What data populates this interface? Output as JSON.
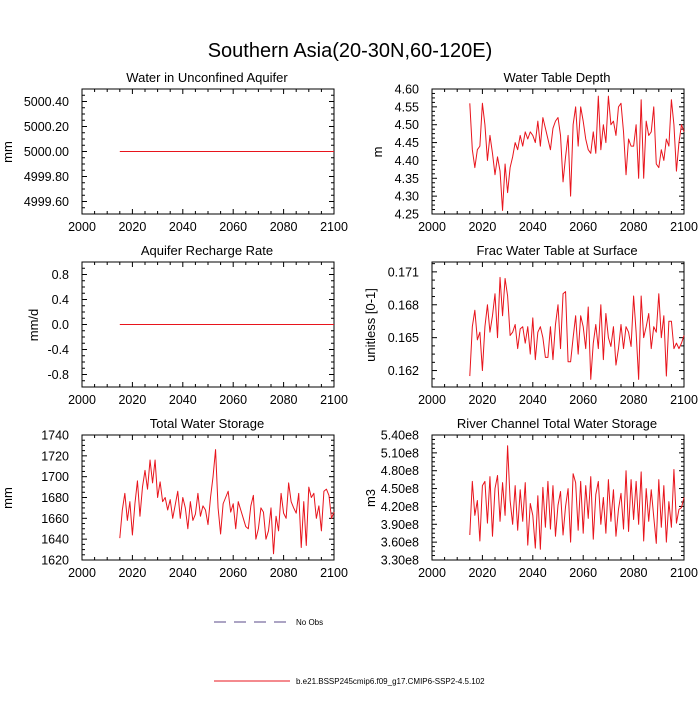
{
  "figure": {
    "title": "Southern Asia(20-30N,60-120E)"
  },
  "legend": {
    "entries": [
      {
        "label": "No Obs",
        "style": "dashed",
        "color": "#5a4a8a"
      },
      {
        "label": "b.e21.BSSP245cmip6.f09_g17.CMIP6-SSP2-4.5.102",
        "style": "solid",
        "color": "#e8141c"
      }
    ]
  },
  "chart_data": [
    {
      "type": "line",
      "title": "Water in Unconfined Aquifer",
      "xlabel": "",
      "ylabel": "mm",
      "xlim": [
        2000,
        2100
      ],
      "ylim": [
        4999.5,
        5000.5
      ],
      "xticks": [
        2000,
        2020,
        2040,
        2060,
        2080,
        2100
      ],
      "yticks": [
        4999.6,
        4999.8,
        5000.0,
        5000.2,
        5000.4
      ],
      "yticklabels": [
        "4999.60",
        "4999.80",
        "5000.00",
        "5000.20",
        "5000.40"
      ],
      "series": [
        {
          "color": "#e8141c",
          "x": [
            2015,
            2100
          ],
          "y": [
            5000.0,
            5000.0
          ]
        }
      ]
    },
    {
      "type": "line",
      "title": "Water Table Depth",
      "xlabel": "",
      "ylabel": "m",
      "xlim": [
        2000,
        2100
      ],
      "ylim": [
        4.25,
        4.6
      ],
      "xticks": [
        2000,
        2020,
        2040,
        2060,
        2080,
        2100
      ],
      "yticks": [
        4.25,
        4.3,
        4.35,
        4.4,
        4.45,
        4.5,
        4.55,
        4.6
      ],
      "yticklabels": [
        "4.25",
        "4.30",
        "4.35",
        "4.40",
        "4.45",
        "4.50",
        "4.55",
        "4.60"
      ],
      "series": [
        {
          "color": "#e8141c",
          "x": [
            2015,
            2016,
            2017,
            2018,
            2019,
            2020,
            2021,
            2022,
            2023,
            2024,
            2025,
            2026,
            2027,
            2028,
            2029,
            2030,
            2031,
            2032,
            2033,
            2034,
            2035,
            2036,
            2037,
            2038,
            2039,
            2040,
            2041,
            2042,
            2043,
            2044,
            2045,
            2046,
            2047,
            2048,
            2049,
            2050,
            2051,
            2052,
            2053,
            2054,
            2055,
            2056,
            2057,
            2058,
            2059,
            2060,
            2061,
            2062,
            2063,
            2064,
            2065,
            2066,
            2067,
            2068,
            2069,
            2070,
            2071,
            2072,
            2073,
            2074,
            2075,
            2076,
            2077,
            2078,
            2079,
            2080,
            2081,
            2082,
            2083,
            2084,
            2085,
            2086,
            2087,
            2088,
            2089,
            2090,
            2091,
            2092,
            2093,
            2094,
            2095,
            2096,
            2097,
            2098,
            2099,
            2100
          ],
          "y": [
            4.56,
            4.43,
            4.38,
            4.43,
            4.44,
            4.56,
            4.5,
            4.4,
            4.47,
            4.42,
            4.36,
            4.41,
            4.37,
            4.26,
            4.39,
            4.31,
            4.38,
            4.41,
            4.45,
            4.43,
            4.47,
            4.44,
            4.48,
            4.46,
            4.48,
            4.47,
            4.45,
            4.51,
            4.44,
            4.52,
            4.49,
            4.46,
            4.43,
            4.49,
            4.51,
            4.52,
            4.47,
            4.34,
            4.41,
            4.47,
            4.3,
            4.5,
            4.55,
            4.44,
            4.55,
            4.51,
            4.46,
            4.43,
            4.42,
            4.48,
            4.42,
            4.58,
            4.43,
            4.5,
            4.45,
            4.58,
            4.5,
            4.51,
            4.47,
            4.55,
            4.56,
            4.48,
            4.36,
            4.46,
            4.44,
            4.44,
            4.5,
            4.35,
            4.57,
            4.35,
            4.51,
            4.47,
            4.48,
            4.55,
            4.39,
            4.38,
            4.43,
            4.4,
            4.46,
            4.44,
            4.57,
            4.5,
            4.37,
            4.45,
            4.5,
            4.48
          ]
        }
      ]
    },
    {
      "type": "line",
      "title": "Aquifer Recharge Rate",
      "xlabel": "",
      "ylabel": "mm/d",
      "xlim": [
        2000,
        2100
      ],
      "ylim": [
        -1.0,
        1.0
      ],
      "xticks": [
        2000,
        2020,
        2040,
        2060,
        2080,
        2100
      ],
      "yticks": [
        -0.8,
        -0.4,
        0.0,
        0.4,
        0.8
      ],
      "yticklabels": [
        "-0.8",
        "-0.4",
        "0.0",
        "0.4",
        "0.8"
      ],
      "series": [
        {
          "color": "#e8141c",
          "x": [
            2015,
            2100
          ],
          "y": [
            0.0,
            0.0
          ]
        }
      ]
    },
    {
      "type": "line",
      "title": "Frac Water Table at Surface",
      "xlabel": "",
      "ylabel": "unitless [0-1]",
      "xlim": [
        2000,
        2100
      ],
      "ylim": [
        0.1605,
        0.1719
      ],
      "xticks": [
        2000,
        2020,
        2040,
        2060,
        2080,
        2100
      ],
      "yticks": [
        0.162,
        0.165,
        0.168,
        0.171
      ],
      "yticklabels": [
        "0.162",
        "0.165",
        "0.168",
        "0.171"
      ],
      "series": [
        {
          "color": "#e8141c",
          "x": [
            2015,
            2016,
            2017,
            2018,
            2019,
            2020,
            2021,
            2022,
            2023,
            2024,
            2025,
            2026,
            2027,
            2028,
            2029,
            2030,
            2031,
            2032,
            2033,
            2034,
            2035,
            2036,
            2037,
            2038,
            2039,
            2040,
            2041,
            2042,
            2043,
            2044,
            2045,
            2046,
            2047,
            2048,
            2049,
            2050,
            2051,
            2052,
            2053,
            2054,
            2055,
            2056,
            2057,
            2058,
            2059,
            2060,
            2061,
            2062,
            2063,
            2064,
            2065,
            2066,
            2067,
            2068,
            2069,
            2070,
            2071,
            2072,
            2073,
            2074,
            2075,
            2076,
            2077,
            2078,
            2079,
            2080,
            2081,
            2082,
            2083,
            2084,
            2085,
            2086,
            2087,
            2088,
            2089,
            2090,
            2091,
            2092,
            2093,
            2094,
            2095,
            2096,
            2097,
            2098,
            2099,
            2100
          ],
          "y": [
            0.1615,
            0.166,
            0.1675,
            0.1648,
            0.1655,
            0.162,
            0.166,
            0.168,
            0.1655,
            0.167,
            0.169,
            0.165,
            0.1705,
            0.167,
            0.1704,
            0.1688,
            0.1652,
            0.1655,
            0.1662,
            0.164,
            0.1658,
            0.166,
            0.1645,
            0.166,
            0.1635,
            0.1668,
            0.163,
            0.1655,
            0.166,
            0.165,
            0.1632,
            0.1632,
            0.166,
            0.163,
            0.1662,
            0.168,
            0.164,
            0.169,
            0.1692,
            0.1628,
            0.1628,
            0.165,
            0.167,
            0.1635,
            0.167,
            0.166,
            0.164,
            0.1678,
            0.1612,
            0.1645,
            0.1662,
            0.164,
            0.168,
            0.163,
            0.1672,
            0.165,
            0.1642,
            0.166,
            0.1625,
            0.164,
            0.1662,
            0.164,
            0.166,
            0.1655,
            0.1642,
            0.1688,
            0.1655,
            0.1612,
            0.1688,
            0.165,
            0.166,
            0.1672,
            0.164,
            0.166,
            0.1655,
            0.169,
            0.165,
            0.167,
            0.1615,
            0.1665,
            0.1665,
            0.164,
            0.1645,
            0.164,
            0.1645,
            0.1652
          ]
        }
      ]
    },
    {
      "type": "line",
      "title": "Total Water Storage",
      "xlabel": "",
      "ylabel": "mm",
      "xlim": [
        2000,
        2100
      ],
      "ylim": [
        1620,
        1740
      ],
      "xticks": [
        2000,
        2020,
        2040,
        2060,
        2080,
        2100
      ],
      "yticks": [
        1620,
        1640,
        1660,
        1680,
        1700,
        1720,
        1740
      ],
      "yticklabels": [
        "1620",
        "1640",
        "1660",
        "1680",
        "1700",
        "1720",
        "1740"
      ],
      "series": [
        {
          "color": "#e8141c",
          "x": [
            2015,
            2016,
            2017,
            2018,
            2019,
            2020,
            2021,
            2022,
            2023,
            2024,
            2025,
            2026,
            2027,
            2028,
            2029,
            2030,
            2031,
            2032,
            2033,
            2034,
            2035,
            2036,
            2037,
            2038,
            2039,
            2040,
            2041,
            2042,
            2043,
            2044,
            2045,
            2046,
            2047,
            2048,
            2049,
            2050,
            2051,
            2052,
            2053,
            2054,
            2055,
            2056,
            2057,
            2058,
            2059,
            2060,
            2061,
            2062,
            2063,
            2064,
            2065,
            2066,
            2067,
            2068,
            2069,
            2070,
            2071,
            2072,
            2073,
            2074,
            2075,
            2076,
            2077,
            2078,
            2079,
            2080,
            2081,
            2082,
            2083,
            2084,
            2085,
            2086,
            2087,
            2088,
            2089,
            2090,
            2091,
            2092,
            2093,
            2094,
            2095,
            2096,
            2097,
            2098,
            2099,
            2100
          ],
          "y": [
            1641,
            1668,
            1684,
            1658,
            1676,
            1644,
            1674,
            1696,
            1662,
            1690,
            1706,
            1688,
            1716,
            1694,
            1716,
            1680,
            1695,
            1676,
            1680,
            1668,
            1678,
            1660,
            1673,
            1686,
            1660,
            1680,
            1670,
            1650,
            1676,
            1658,
            1664,
            1684,
            1662,
            1672,
            1668,
            1654,
            1680,
            1700,
            1726,
            1670,
            1645,
            1674,
            1680,
            1686,
            1666,
            1674,
            1650,
            1676,
            1668,
            1660,
            1652,
            1650,
            1672,
            1682,
            1640,
            1650,
            1670,
            1666,
            1640,
            1648,
            1670,
            1626,
            1662,
            1648,
            1684,
            1665,
            1660,
            1694,
            1676,
            1670,
            1665,
            1684,
            1632,
            1676,
            1634,
            1690,
            1680,
            1684,
            1660,
            1672,
            1648,
            1686,
            1688,
            1682,
            1660,
            1666
          ]
        }
      ]
    },
    {
      "type": "line",
      "title": "River Channel Total Water Storage",
      "xlabel": "",
      "ylabel": "m3",
      "xlim": [
        2000,
        2100
      ],
      "ylim": [
        330000000.0,
        540000000.0
      ],
      "xticks": [
        2000,
        2020,
        2040,
        2060,
        2080,
        2100
      ],
      "yticks": [
        330000000.0,
        360000000.0,
        390000000.0,
        420000000.0,
        450000000.0,
        480000000.0,
        510000000.0,
        540000000.0
      ],
      "yticklabels": [
        "3.30e8",
        "3.60e8",
        "3.90e8",
        "4.20e8",
        "4.50e8",
        "4.80e8",
        "5.10e8",
        "5.40e8"
      ],
      "series": [
        {
          "color": "#e8141c",
          "x": [
            2015,
            2016,
            2017,
            2018,
            2019,
            2020,
            2021,
            2022,
            2023,
            2024,
            2025,
            2026,
            2027,
            2028,
            2029,
            2030,
            2031,
            2032,
            2033,
            2034,
            2035,
            2036,
            2037,
            2038,
            2039,
            2040,
            2041,
            2042,
            2043,
            2044,
            2045,
            2046,
            2047,
            2048,
            2049,
            2050,
            2051,
            2052,
            2053,
            2054,
            2055,
            2056,
            2057,
            2058,
            2059,
            2060,
            2061,
            2062,
            2063,
            2064,
            2065,
            2066,
            2067,
            2068,
            2069,
            2070,
            2071,
            2072,
            2073,
            2074,
            2075,
            2076,
            2077,
            2078,
            2079,
            2080,
            2081,
            2082,
            2083,
            2084,
            2085,
            2086,
            2087,
            2088,
            2089,
            2090,
            2091,
            2092,
            2093,
            2094,
            2095,
            2096,
            2097,
            2098,
            2099,
            2100
          ],
          "y": [
            372000000.0,
            462000000.0,
            405000000.0,
            430000000.0,
            362000000.0,
            455000000.0,
            462000000.0,
            392000000.0,
            470000000.0,
            370000000.0,
            450000000.0,
            472000000.0,
            395000000.0,
            460000000.0,
            405000000.0,
            522000000.0,
            430000000.0,
            390000000.0,
            455000000.0,
            380000000.0,
            448000000.0,
            395000000.0,
            460000000.0,
            355000000.0,
            425000000.0,
            405000000.0,
            350000000.0,
            438000000.0,
            348000000.0,
            452000000.0,
            385000000.0,
            462000000.0,
            382000000.0,
            455000000.0,
            370000000.0,
            422000000.0,
            445000000.0,
            372000000.0,
            420000000.0,
            450000000.0,
            360000000.0,
            475000000.0,
            460000000.0,
            380000000.0,
            462000000.0,
            375000000.0,
            455000000.0,
            400000000.0,
            470000000.0,
            365000000.0,
            440000000.0,
            462000000.0,
            390000000.0,
            435000000.0,
            375000000.0,
            465000000.0,
            395000000.0,
            448000000.0,
            370000000.0,
            415000000.0,
            442000000.0,
            382000000.0,
            480000000.0,
            378000000.0,
            465000000.0,
            398000000.0,
            462000000.0,
            390000000.0,
            478000000.0,
            362000000.0,
            450000000.0,
            395000000.0,
            448000000.0,
            402000000.0,
            358000000.0,
            465000000.0,
            385000000.0,
            455000000.0,
            360000000.0,
            428000000.0,
            385000000.0,
            482000000.0,
            392000000.0,
            415000000.0,
            418000000.0,
            435000000.0
          ]
        }
      ]
    }
  ]
}
